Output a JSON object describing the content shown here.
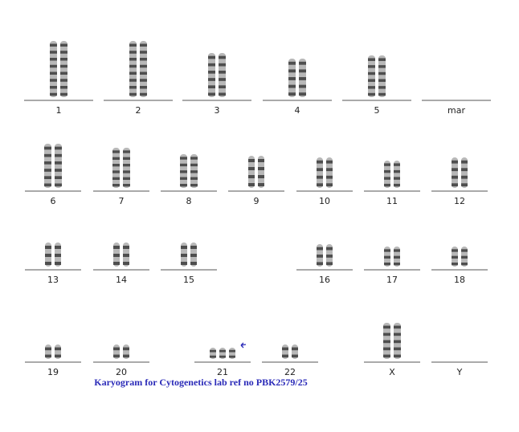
{
  "karyogram": {
    "slots": [
      "1",
      "2",
      "3",
      "4",
      "5",
      "mar",
      "6",
      "7",
      "8",
      "9",
      "10",
      "11",
      "12",
      "13",
      "14",
      "15",
      "16",
      "17",
      "18",
      "19",
      "20",
      "21",
      "22",
      "X",
      "Y"
    ],
    "caption": "Karyogram for Cytogenetics lab ref no PBK2579/25"
  }
}
